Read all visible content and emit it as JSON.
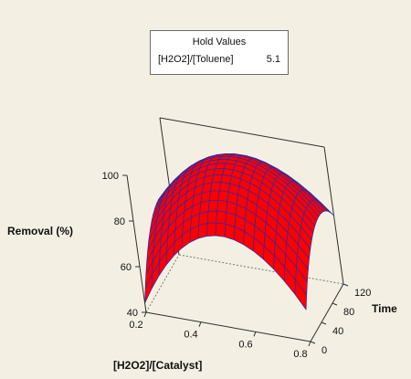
{
  "chart_data": {
    "type": "surface",
    "hold_values": {
      "title": "Hold Values",
      "items": [
        {
          "name": "[H2O2]/[Toluene]",
          "value": "5.1"
        }
      ]
    },
    "x": {
      "label": "[H2O2]/[Catalyst]",
      "range": [
        0.2,
        0.8
      ],
      "ticks": [
        0.2,
        0.4,
        0.6,
        0.8
      ],
      "tick_labels": [
        "0.2",
        "0.4",
        "0.6",
        "0.8"
      ]
    },
    "y": {
      "label": "Time",
      "range": [
        0,
        120
      ],
      "ticks": [
        0,
        40,
        80,
        120
      ],
      "tick_labels": [
        "0",
        "40",
        "80",
        "120"
      ]
    },
    "z": {
      "label": "Removal (%)",
      "range": [
        40,
        100
      ],
      "ticks": [
        40,
        60,
        80,
        100
      ],
      "tick_labels": [
        "40",
        "60",
        "80",
        "100"
      ]
    },
    "surface": {
      "x": [
        0.2,
        0.5,
        0.8
      ],
      "y": [
        0,
        60,
        120
      ],
      "z": [
        [
          44,
          80,
          54
        ],
        [
          70,
          99,
          78
        ],
        [
          66,
          87,
          70
        ]
      ]
    },
    "colors": {
      "surface": "#ff0000",
      "mesh": "#2a2aa8",
      "axes": "#2f2f2f",
      "background": "#f3f0e3"
    }
  }
}
